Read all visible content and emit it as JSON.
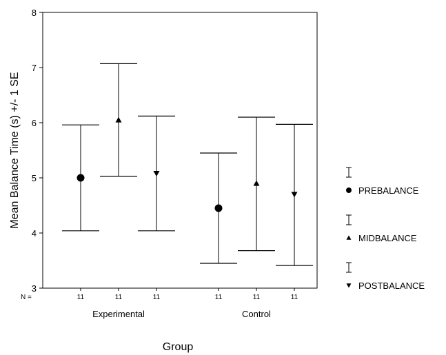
{
  "chart_data": {
    "type": "errorbar",
    "xlabel": "Group",
    "ylabel": "Mean Balance Time (s) +/- 1 SE",
    "ylim": [
      3,
      8
    ],
    "yticks": [
      "3",
      "4",
      "5",
      "6",
      "7",
      "8"
    ],
    "n_label": "N =",
    "groups": [
      "Experimental",
      "Control"
    ],
    "series": [
      {
        "name": "PREBALANCE",
        "marker": "circle",
        "n": [
          "11",
          "11"
        ],
        "mean": [
          5.0,
          4.45
        ],
        "low": [
          4.04,
          3.45
        ],
        "high": [
          5.96,
          5.45
        ]
      },
      {
        "name": "MIDBALANCE",
        "marker": "triangle-up",
        "n": [
          "11",
          "11"
        ],
        "mean": [
          6.05,
          4.9
        ],
        "low": [
          5.03,
          3.68
        ],
        "high": [
          7.07,
          6.1
        ]
      },
      {
        "name": "POSTBALANCE",
        "marker": "triangle-down",
        "n": [
          "11",
          "11"
        ],
        "mean": [
          5.08,
          4.7
        ],
        "low": [
          4.04,
          3.41
        ],
        "high": [
          6.12,
          5.97
        ]
      }
    ],
    "grid": false,
    "legend_position": "right"
  }
}
